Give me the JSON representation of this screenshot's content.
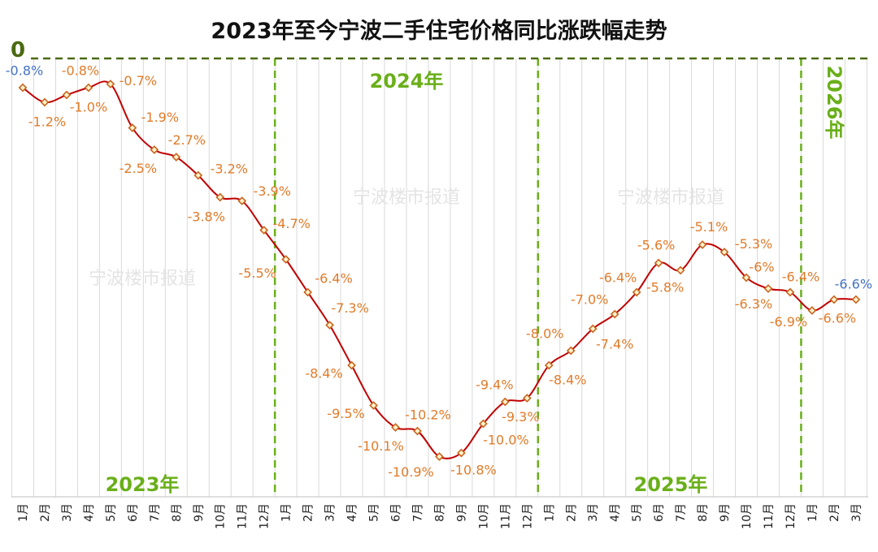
{
  "chart_data": {
    "type": "line",
    "title": "2023年至今宁波二手住宅价格同比涨跌幅走势",
    "zero_label": "0",
    "watermark": "宁波楼市报道",
    "years": [
      "2023年",
      "2024年",
      "2025年",
      "2026年"
    ],
    "x": [
      "1月",
      "2月",
      "3月",
      "4月",
      "5月",
      "6月",
      "7月",
      "8月",
      "9月",
      "10月",
      "11月",
      "12月",
      "1月",
      "2月",
      "3月",
      "4月",
      "5月",
      "6月",
      "7月",
      "8月",
      "9月",
      "10月",
      "11月",
      "12月",
      "1月",
      "2月",
      "3月",
      "4月",
      "5月",
      "6月",
      "7月",
      "8月",
      "9月",
      "10月",
      "11月",
      "12月",
      "1月",
      "2月",
      "3月"
    ],
    "values": [
      -0.8,
      -1.2,
      -1.0,
      -0.8,
      -0.7,
      -1.9,
      -2.5,
      -2.7,
      -3.2,
      -3.8,
      -3.9,
      -4.7,
      -5.5,
      -6.4,
      -7.3,
      -8.4,
      -9.5,
      -10.1,
      -10.2,
      -10.9,
      -10.8,
      -10.0,
      -9.4,
      -9.3,
      -8.4,
      -8.0,
      -7.4,
      -7.0,
      -6.4,
      -5.6,
      -5.8,
      -5.1,
      -5.3,
      -6,
      -6.3,
      -6.4,
      -6.9,
      -6.6,
      -6.6
    ],
    "data_labels": [
      "-0.8%",
      "-1.2%",
      "-1.0%",
      "-0.8%",
      "-0.7%",
      "-1.9%",
      "-2.5%",
      "-2.7%",
      "-3.2%",
      "-3.8%",
      "-3.9%",
      "-4.7%",
      "-5.5%",
      "-6.4%",
      "-7.3%",
      "-8.4%",
      "-9.5%",
      "-10.1%",
      "-10.2%",
      "-10.9%",
      "-10.8%",
      "-10.0%",
      "-9.4%",
      "-9.3%",
      "-8.4%",
      "-8.0%",
      "-7.4%",
      "-7.0%",
      "-6.4%",
      "-5.6%",
      "-5.8%",
      "-5.1%",
      "-5.3%",
      "-6%",
      "-6.3%",
      "-6.4%",
      "-6.9%",
      "-6.6%",
      "-6.6%"
    ],
    "ylim": [
      -12,
      0
    ],
    "grid": "vertical",
    "colors": {
      "line": "#C00000",
      "marker": "#C8641E",
      "label": "#E07B2A",
      "highlight_label": "#4472C4",
      "year": "#6AAF1A",
      "zero_line": "#4A6A10"
    }
  }
}
